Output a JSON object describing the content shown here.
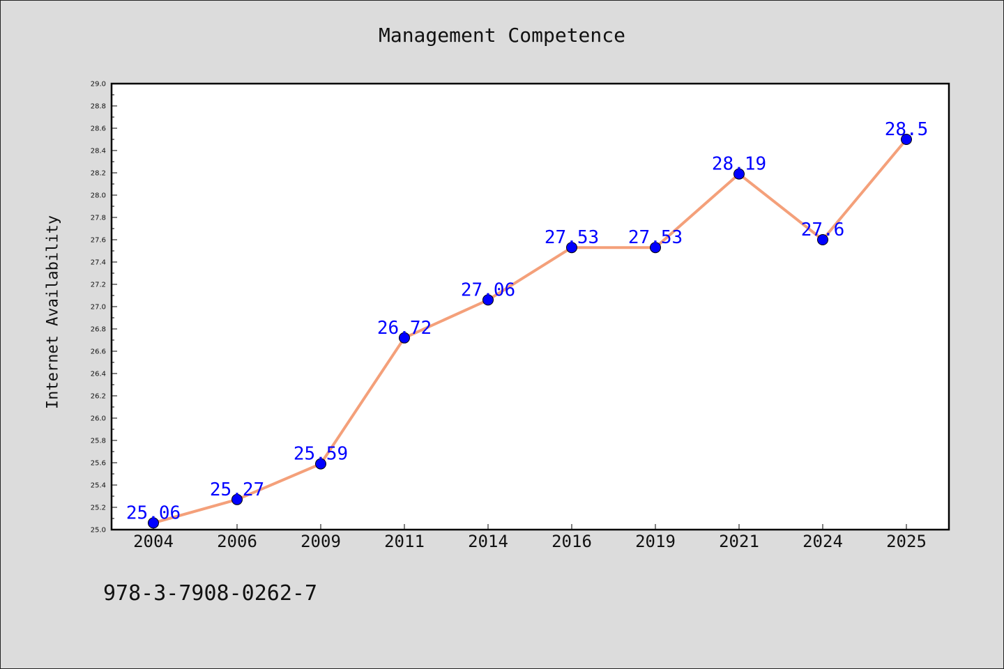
{
  "chart_data": {
    "type": "line",
    "title": "Management Competence",
    "xlabel": "",
    "ylabel": "Internet Availability",
    "categories": [
      "2004",
      "2006",
      "2009",
      "2011",
      "2014",
      "2016",
      "2019",
      "2021",
      "2024",
      "2025"
    ],
    "series": [
      {
        "values": [
          25.06,
          25.27,
          25.59,
          26.72,
          27.06,
          27.53,
          27.53,
          28.19,
          27.6,
          28.5
        ],
        "labels": [
          "25.06",
          "25.27",
          "25.59",
          "26.72",
          "27.06",
          "27.53",
          "27.53",
          "28.19",
          "27.6",
          "28.5"
        ],
        "line_color": "#f4a07a",
        "marker_color": "#0000ff"
      }
    ],
    "ylim": [
      25.0,
      29.0
    ],
    "yticks": [
      "25.0",
      "25.2",
      "25.4",
      "25.6",
      "25.8",
      "26.0",
      "26.2",
      "26.4",
      "26.6",
      "26.8",
      "27.0",
      "27.2",
      "27.4",
      "27.6",
      "27.8",
      "28.0",
      "28.2",
      "28.4",
      "28.6",
      "28.8",
      "29.0"
    ],
    "grid": false,
    "label_color": "#0000ff"
  },
  "footnote": "978-3-7908-0262-7"
}
